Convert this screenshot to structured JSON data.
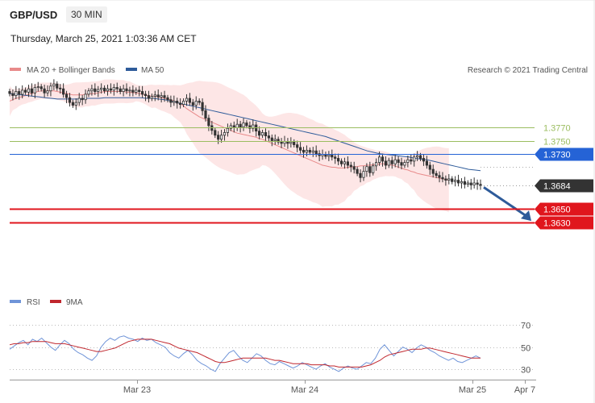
{
  "header": {
    "symbol": "GBP/USD",
    "timeframe": "30 MIN",
    "datetime": "Thursday, March 25, 2021 1:03:36 AM CET"
  },
  "legend": {
    "ma20": "MA 20 + Bollinger Bands",
    "ma50": "MA 50",
    "copyright": "Research © 2021 Trading Central",
    "rsi": "RSI",
    "rsi_ma": "9MA"
  },
  "colors": {
    "ma20": "#e88a8a",
    "ma50": "#2e5b9a",
    "bollinger_fill": "#fde3e3",
    "candle": "#333333",
    "resistance_major": "#2563d6",
    "resistance_minor": "#9bbd60",
    "support": "#e0161d",
    "current": "#333333",
    "arrow": "#2e5b9a",
    "rsi": "#6f94d8",
    "rsi_ma": "#c0262d"
  },
  "chart_data": [
    {
      "type": "line",
      "chart": "price",
      "y_range": [
        1.359,
        1.3838
      ],
      "x_ticks": [
        "Mar 23",
        "Mar 24",
        "Mar 25",
        "Apr 7"
      ],
      "levels": [
        {
          "value": 1.377,
          "label": "1.3770",
          "kind": "resistance-minor"
        },
        {
          "value": 1.375,
          "label": "1.3750",
          "kind": "resistance-minor"
        },
        {
          "value": 1.373,
          "label": "1.3730",
          "kind": "resistance-major"
        },
        {
          "value": 1.3684,
          "label": "1.3684",
          "kind": "current"
        },
        {
          "value": 1.365,
          "label": "1.3650",
          "kind": "support"
        },
        {
          "value": 1.363,
          "label": "1.3630",
          "kind": "support"
        }
      ],
      "close": [
        1.3819,
        1.3816,
        1.3822,
        1.3818,
        1.3824,
        1.3821,
        1.3826,
        1.382,
        1.3828,
        1.3829,
        1.3826,
        1.382,
        1.3823,
        1.383,
        1.3833,
        1.3827,
        1.3826,
        1.3818,
        1.3813,
        1.3806,
        1.3802,
        1.3806,
        1.3812,
        1.381,
        1.3818,
        1.3823,
        1.3826,
        1.3822,
        1.3825,
        1.3827,
        1.3823,
        1.3826,
        1.3824,
        1.3828,
        1.3826,
        1.3822,
        1.3826,
        1.3823,
        1.3824,
        1.3821,
        1.3824,
        1.3822,
        1.3818,
        1.3816,
        1.3812,
        1.3815,
        1.3817,
        1.3814,
        1.3816,
        1.3813,
        1.381,
        1.3806,
        1.3808,
        1.3805,
        1.3803,
        1.3808,
        1.3812,
        1.3806,
        1.3802,
        1.3808,
        1.3806,
        1.3794,
        1.3783,
        1.3772,
        1.3765,
        1.3758,
        1.3752,
        1.3758,
        1.3762,
        1.3768,
        1.3772,
        1.3769,
        1.3774,
        1.377,
        1.3776,
        1.3772,
        1.3768,
        1.3773,
        1.3764,
        1.3758,
        1.3762,
        1.3757,
        1.3754,
        1.375,
        1.3752,
        1.3748,
        1.3746,
        1.3749,
        1.3746,
        1.3748,
        1.3744,
        1.374,
        1.3736,
        1.3733,
        1.3736,
        1.3733,
        1.3735,
        1.3731,
        1.3728,
        1.373,
        1.3727,
        1.3729,
        1.3726,
        1.3724,
        1.372,
        1.3716,
        1.3719,
        1.3714,
        1.3712,
        1.3708,
        1.3702,
        1.3696,
        1.3705,
        1.3712,
        1.3703,
        1.3713,
        1.3718,
        1.3726,
        1.372,
        1.3714,
        1.3721,
        1.3716,
        1.3722,
        1.3718,
        1.3714,
        1.3718,
        1.3722,
        1.372,
        1.3726,
        1.3728,
        1.3724,
        1.372,
        1.3714,
        1.3708,
        1.3702,
        1.3699,
        1.3696,
        1.3694,
        1.3692,
        1.3694,
        1.369,
        1.3692,
        1.3688,
        1.369,
        1.3686,
        1.3688,
        1.3685,
        1.3688,
        1.3686,
        1.3684
      ],
      "ma20": [
        1.3808,
        1.381,
        1.3812,
        1.3813,
        1.3815,
        1.3816,
        1.3818,
        1.3819,
        1.3821,
        1.3822,
        1.3823,
        1.3823,
        1.3823,
        1.3823,
        1.3823,
        1.3822,
        1.3821,
        1.382,
        1.3819,
        1.3818,
        1.3817,
        1.3817,
        1.3817,
        1.3817,
        1.3818,
        1.3818,
        1.3819,
        1.3819,
        1.382,
        1.3821,
        1.3822,
        1.3822,
        1.3822,
        1.3822,
        1.3822,
        1.3822,
        1.3822,
        1.3821,
        1.3821,
        1.382,
        1.382,
        1.3819,
        1.3818,
        1.3817,
        1.3816,
        1.3815,
        1.3815,
        1.3814,
        1.3813,
        1.3812,
        1.3811,
        1.381,
        1.3808,
        1.3806,
        1.3804,
        1.3801,
        1.3797,
        1.3794,
        1.3791,
        1.3788,
        1.3785,
        1.3783,
        1.3781,
        1.3779,
        1.3777,
        1.3775,
        1.3773,
        1.3771,
        1.3769,
        1.3767,
        1.3765,
        1.3763,
        1.3761,
        1.376,
        1.3759,
        1.3758,
        1.3757,
        1.3756,
        1.3755,
        1.3753,
        1.3752,
        1.375,
        1.3748,
        1.3746,
        1.3744,
        1.3742,
        1.374,
        1.3738,
        1.3736,
        1.3734,
        1.3732,
        1.373,
        1.3728,
        1.3726,
        1.3724,
        1.3722,
        1.372,
        1.3718,
        1.3716,
        1.3714,
        1.3713,
        1.3712,
        1.3711,
        1.3711,
        1.371,
        1.371,
        1.371,
        1.3711,
        1.3711,
        1.3712,
        1.3712,
        1.3713,
        1.3713,
        1.3714,
        1.3714,
        1.3715,
        1.3715,
        1.3716,
        1.3716,
        1.3716,
        1.3715,
        1.3714,
        1.3713,
        1.3711,
        1.371,
        1.3708,
        1.3707,
        1.3705,
        1.3704,
        1.3702,
        1.3701,
        1.37,
        1.3699,
        1.3698,
        1.3697,
        1.3696,
        1.3695,
        1.3694,
        1.3693,
        1.3692
      ],
      "ma50": [
        1.3819,
        1.3818,
        1.3817,
        1.3816,
        1.3815,
        1.3814,
        1.3813,
        1.3812,
        1.3811,
        1.3811,
        1.3811,
        1.3811,
        1.3811,
        1.3812,
        1.3812,
        1.3812,
        1.3813,
        1.3813,
        1.3813,
        1.3813,
        1.3813,
        1.3813,
        1.3813,
        1.3812,
        1.3812,
        1.3811,
        1.381,
        1.3808,
        1.3806,
        1.3804,
        1.3802,
        1.38,
        1.3798,
        1.3796,
        1.3794,
        1.3792,
        1.379,
        1.3788,
        1.3786,
        1.3784,
        1.3782,
        1.378,
        1.3778,
        1.3776,
        1.3774,
        1.3772,
        1.377,
        1.3768,
        1.3766,
        1.3764,
        1.3762,
        1.376,
        1.3758,
        1.3756,
        1.3753,
        1.375,
        1.3747,
        1.3744,
        1.3741,
        1.3738,
        1.3735,
        1.3733,
        1.3731,
        1.373,
        1.3729,
        1.3728,
        1.3727,
        1.3726,
        1.3724,
        1.3723,
        1.3722,
        1.372,
        1.3718,
        1.3716,
        1.3714,
        1.3712,
        1.371,
        1.3708,
        1.3707,
        1.3706
      ]
    },
    {
      "type": "line",
      "chart": "rsi",
      "y_range": [
        25,
        78
      ],
      "y_ticks": [
        30,
        50,
        70
      ],
      "rsi": [
        48,
        51,
        54,
        56,
        52,
        57,
        55,
        58,
        54,
        50,
        47,
        52,
        56,
        53,
        48,
        45,
        43,
        40,
        38,
        42,
        50,
        55,
        58,
        56,
        59,
        60,
        58,
        57,
        55,
        58,
        56,
        57,
        54,
        52,
        50,
        45,
        42,
        40,
        44,
        47,
        43,
        38,
        35,
        33,
        30,
        28,
        35,
        40,
        45,
        47,
        42,
        38,
        36,
        40,
        44,
        42,
        38,
        35,
        34,
        37,
        35,
        33,
        31,
        33,
        36,
        34,
        32,
        30,
        33,
        35,
        32,
        30,
        28,
        31,
        33,
        31,
        30,
        33,
        36,
        35,
        40,
        48,
        52,
        47,
        42,
        46,
        50,
        48,
        45,
        49,
        52,
        50,
        47,
        45,
        42,
        40,
        38,
        40,
        37,
        36,
        38,
        40,
        42,
        40
      ],
      "ma9": [
        52,
        53,
        53,
        54,
        54,
        55,
        55,
        55,
        55,
        54,
        53,
        53,
        53,
        52,
        51,
        50,
        49,
        48,
        47,
        46,
        46,
        47,
        48,
        49,
        51,
        53,
        55,
        56,
        57,
        57,
        57,
        57,
        56,
        55,
        54,
        53,
        51,
        49,
        48,
        47,
        46,
        45,
        43,
        41,
        39,
        37,
        36,
        36,
        37,
        38,
        39,
        40,
        40,
        40,
        40,
        40,
        40,
        39,
        38,
        38,
        37,
        36,
        35,
        35,
        35,
        35,
        34,
        34,
        34,
        34,
        33,
        33,
        32,
        32,
        32,
        32,
        32,
        32,
        33,
        34,
        36,
        38,
        41,
        43,
        44,
        45,
        46,
        47,
        48,
        48,
        48,
        49,
        49,
        48,
        47,
        46,
        45,
        44,
        43,
        42,
        41,
        40,
        40,
        40
      ]
    }
  ]
}
